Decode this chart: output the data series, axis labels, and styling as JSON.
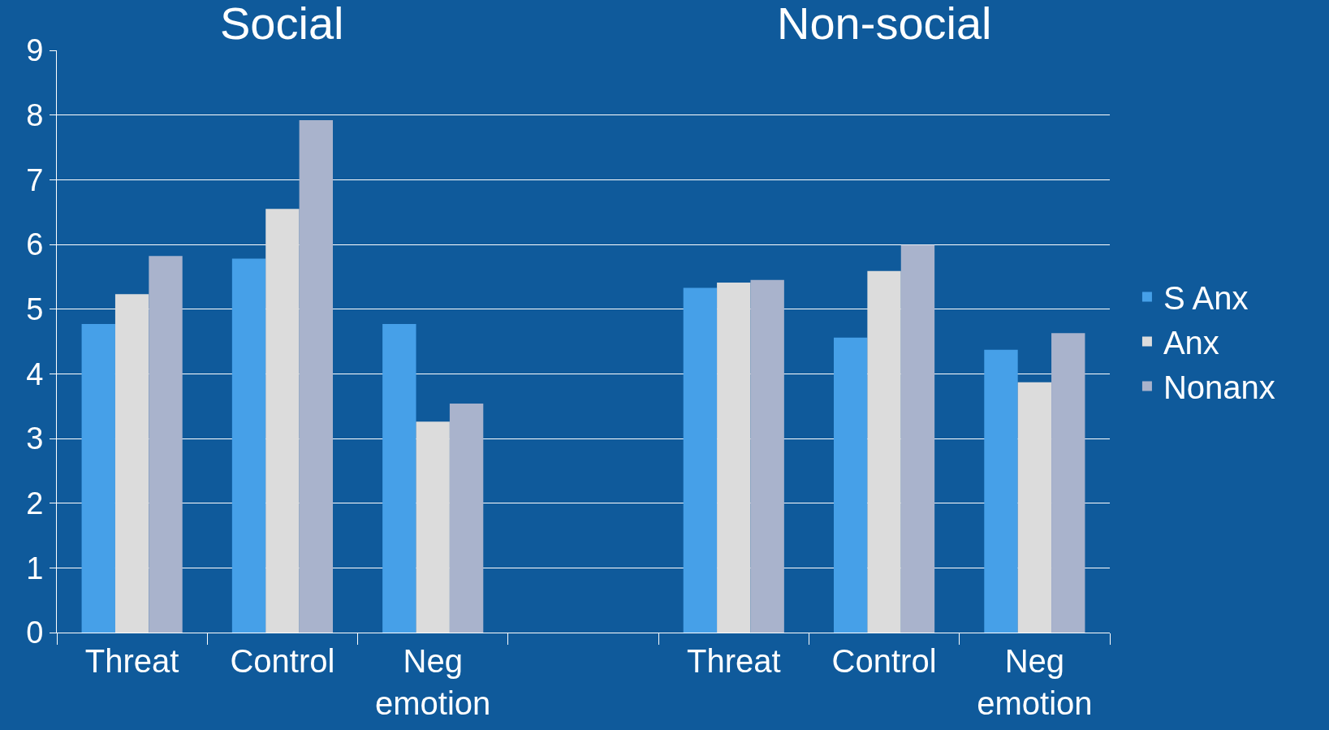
{
  "chart_data": {
    "type": "bar",
    "categories": [
      "Threat",
      "Control",
      "Neg emotion",
      null,
      "Threat",
      "Control",
      "Neg emotion"
    ],
    "series": [
      {
        "name": "S Anx",
        "color": "#46a0e8",
        "values": [
          4.77,
          5.78,
          4.77,
          null,
          5.33,
          4.56,
          4.37
        ]
      },
      {
        "name": "Anx",
        "color": "#dcdcdc",
        "values": [
          5.23,
          6.55,
          3.26,
          null,
          5.41,
          5.59,
          3.87
        ]
      },
      {
        "name": "Nonanx",
        "color": "#a9b3cc",
        "values": [
          5.82,
          7.92,
          3.54,
          null,
          5.45,
          5.99,
          4.63
        ]
      }
    ],
    "annotations": [
      "Social",
      "Non-social"
    ],
    "ylim": [
      0,
      9
    ],
    "yticks": [
      0,
      1,
      2,
      3,
      4,
      5,
      6,
      7,
      8,
      9
    ],
    "grid": "y",
    "legend": "right"
  }
}
